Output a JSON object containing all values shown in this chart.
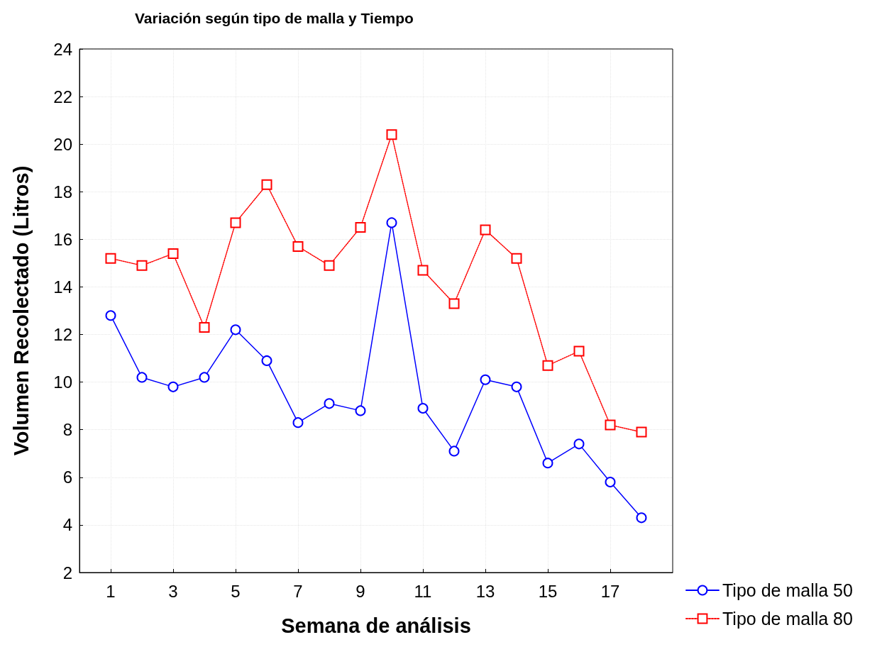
{
  "chart_data": {
    "type": "line",
    "title": "Variación según tipo de malla y Tiempo",
    "xlabel": "Semana de análisis",
    "ylabel": "Volumen Recolectado (Litros)",
    "x": [
      1,
      2,
      3,
      4,
      5,
      6,
      7,
      8,
      9,
      10,
      11,
      12,
      13,
      14,
      15,
      16,
      17,
      18
    ],
    "xlim": [
      0,
      19
    ],
    "xticks": [
      1,
      3,
      5,
      7,
      9,
      11,
      13,
      15,
      17
    ],
    "ylim": [
      2,
      24
    ],
    "yticks": [
      2,
      4,
      6,
      8,
      10,
      12,
      14,
      16,
      18,
      20,
      22,
      24
    ],
    "grid": true,
    "legend": "bottom right",
    "series": [
      {
        "name": "Tipo de malla 50",
        "color": "#0000ff",
        "marker": "circle",
        "line_style": "solid",
        "values": [
          12.8,
          10.2,
          9.8,
          10.2,
          12.2,
          10.9,
          8.3,
          9.1,
          8.8,
          16.7,
          8.9,
          7.1,
          10.1,
          9.8,
          6.6,
          7.4,
          5.8,
          4.3
        ]
      },
      {
        "name": "Tipo de malla 80",
        "color": "#ff0000",
        "marker": "square",
        "line_style": "dotted",
        "values": [
          15.2,
          14.9,
          15.4,
          12.3,
          16.7,
          18.3,
          15.7,
          14.9,
          16.5,
          20.4,
          14.7,
          13.3,
          16.4,
          15.2,
          10.7,
          11.3,
          8.2,
          7.9
        ]
      }
    ]
  }
}
